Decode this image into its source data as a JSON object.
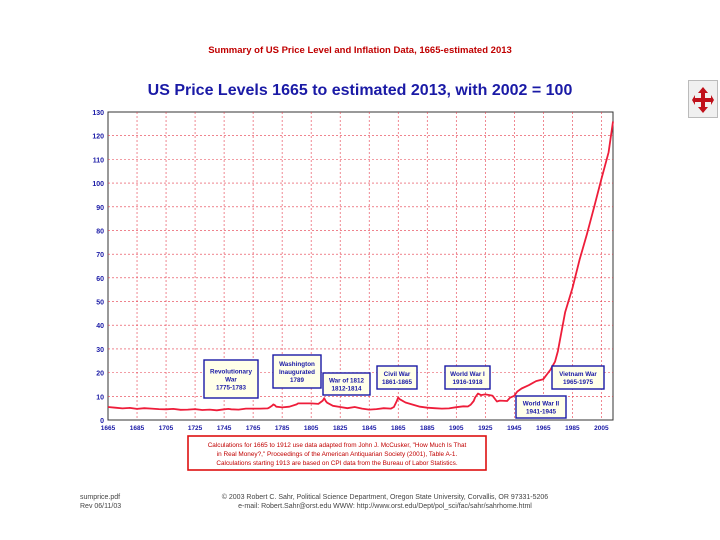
{
  "slide": {
    "header": "Summary of US Price Level and Inflation Data, 1665-estimated 2013",
    "footer_left_1": "sumprice.pdf",
    "footer_left_2": "Rev 06/11/03",
    "footer_center_1": "© 2003 Robert C. Sahr, Political Science Department, Oregon State University, Corvallis, OR 97331-5206",
    "footer_center_2": "e-mail: Robert.Sahr@orst.edu  WWW: http://www.orst.edu/Dept/pol_sci/fac/sahr/sahrhome.html",
    "nav_icon": "four-way-arrow-icon"
  },
  "colors": {
    "title": "#1a1aa6",
    "header": "#c00000",
    "line": "#ee1d3a",
    "grid": "#e53a4a",
    "annotation_border": "#1a1aa6",
    "note_border": "#dd1111"
  },
  "chart_data": {
    "type": "line",
    "title": "US Price Levels 1665 to estimated 2013, with 2002 = 100",
    "xlabel": "",
    "ylabel": "",
    "xlim": [
      1665,
      2013
    ],
    "ylim": [
      0,
      130
    ],
    "x_ticks": [
      1665,
      1685,
      1705,
      1725,
      1745,
      1765,
      1785,
      1805,
      1825,
      1845,
      1865,
      1885,
      1905,
      1925,
      1945,
      1965,
      1985,
      2005
    ],
    "y_ticks": [
      0,
      10,
      20,
      30,
      40,
      50,
      60,
      70,
      80,
      90,
      100,
      110,
      120,
      130
    ],
    "grid": true,
    "series": [
      {
        "name": "US Price Level (2002 = 100)",
        "x": [
          1665,
          1670,
          1675,
          1680,
          1685,
          1690,
          1695,
          1700,
          1705,
          1710,
          1715,
          1720,
          1725,
          1730,
          1735,
          1740,
          1745,
          1748,
          1750,
          1755,
          1760,
          1765,
          1770,
          1775,
          1776,
          1778,
          1779,
          1780,
          1781,
          1783,
          1785,
          1790,
          1795,
          1796,
          1800,
          1805,
          1810,
          1813,
          1814,
          1815,
          1816,
          1820,
          1825,
          1830,
          1835,
          1840,
          1845,
          1850,
          1855,
          1860,
          1862,
          1864,
          1865,
          1866,
          1870,
          1875,
          1880,
          1885,
          1890,
          1895,
          1900,
          1905,
          1910,
          1913,
          1915,
          1917,
          1918,
          1920,
          1922,
          1925,
          1929,
          1930,
          1933,
          1935,
          1940,
          1942,
          1945,
          1947,
          1950,
          1955,
          1960,
          1965,
          1970,
          1973,
          1975,
          1980,
          1985,
          1990,
          1995,
          2000,
          2005,
          2010,
          2013
        ],
        "values": [
          5.5,
          5.2,
          4.9,
          5.1,
          4.7,
          5.0,
          4.8,
          4.6,
          4.5,
          4.7,
          4.3,
          4.4,
          4.6,
          4.2,
          4.4,
          4.1,
          4.5,
          4.7,
          4.5,
          4.4,
          4.8,
          4.8,
          4.8,
          4.9,
          5.2,
          6.0,
          6.6,
          6.2,
          5.6,
          5.5,
          5.3,
          5.6,
          6.6,
          7.0,
          7.0,
          7.0,
          6.8,
          8.2,
          9.2,
          8.0,
          7.3,
          6.0,
          5.5,
          5.0,
          5.5,
          4.8,
          4.4,
          4.6,
          5.0,
          4.8,
          5.5,
          8.0,
          9.5,
          8.8,
          7.4,
          6.5,
          5.6,
          5.2,
          5.0,
          4.8,
          4.9,
          5.4,
          5.8,
          5.7,
          6.5,
          8.0,
          9.5,
          11.2,
          10.5,
          10.8,
          10.4,
          10.2,
          7.8,
          8.2,
          8.0,
          9.4,
          10.2,
          12.0,
          13.3,
          14.7,
          16.4,
          17.2,
          21.3,
          24.6,
          29.1,
          45.4,
          55.6,
          67.7,
          78.4,
          89.8,
          101.7,
          113.0,
          126.0
        ]
      }
    ],
    "annotations": [
      {
        "lines": [
          "Revolutionary",
          "War",
          "1775-1783"
        ]
      },
      {
        "lines": [
          "Washington",
          "Inaugurated",
          "1789"
        ]
      },
      {
        "lines": [
          "War of 1812",
          "1812-1814"
        ]
      },
      {
        "lines": [
          "Civil War",
          "1861-1865"
        ]
      },
      {
        "lines": [
          "World War I",
          "1916-1918"
        ]
      },
      {
        "lines": [
          "World War II",
          "1941-1945"
        ]
      },
      {
        "lines": [
          "Vietnam War",
          "1965-1975"
        ]
      }
    ],
    "source_note": [
      "Calculations for 1665 to 1912 use data adapted from John J. McCusker, \"How Much Is That",
      "in Real Money?,\" Proceedings of the American Antiquarian Society (2001), Table A-1.",
      "Calculations starting 1913 are based on CPI data from the Bureau of Labor Statistics."
    ]
  }
}
